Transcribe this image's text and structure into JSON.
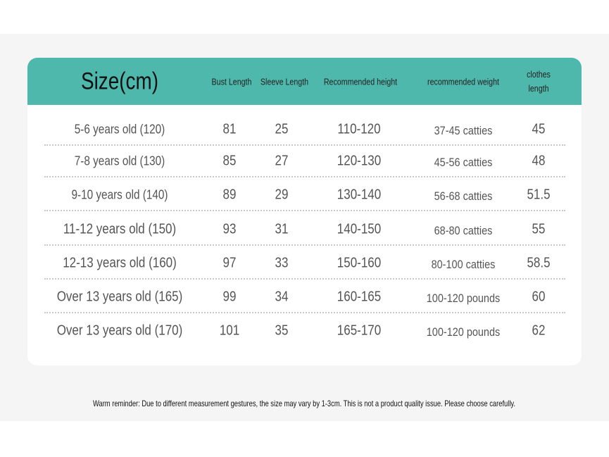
{
  "table": {
    "header": [
      "Size(cm)",
      "Bust Length",
      "Sleeve Length",
      "Recommended height",
      "recommended weight",
      "clothes length"
    ],
    "rows": [
      [
        "5-6 years old (120)",
        "81",
        "25",
        "110-120",
        "37-45 catties",
        "45"
      ],
      [
        "7-8 years old (130)",
        "85",
        "27",
        "120-130",
        "45-56 catties",
        "48"
      ],
      [
        "9-10 years old (140)",
        "89",
        "29",
        "130-140",
        "56-68 catties",
        "51.5"
      ],
      [
        "11-12 years old (150)",
        "93",
        "31",
        "140-150",
        "68-80 catties",
        "55"
      ],
      [
        "12-13 years old (160)",
        "97",
        "33",
        "150-160",
        "80-100 catties",
        "58.5"
      ],
      [
        "Over 13 years old (165)",
        "99",
        "34",
        "160-165",
        "100-120 pounds",
        "60"
      ],
      [
        "Over 13 years old (170)",
        "101",
        "35",
        "165-170",
        "100-120 pounds",
        "62"
      ]
    ]
  },
  "note": "Warm reminder: Due to different measurement gestures, the size may vary by 1-3cm. This is not a product quality issue. Please choose carefully."
}
